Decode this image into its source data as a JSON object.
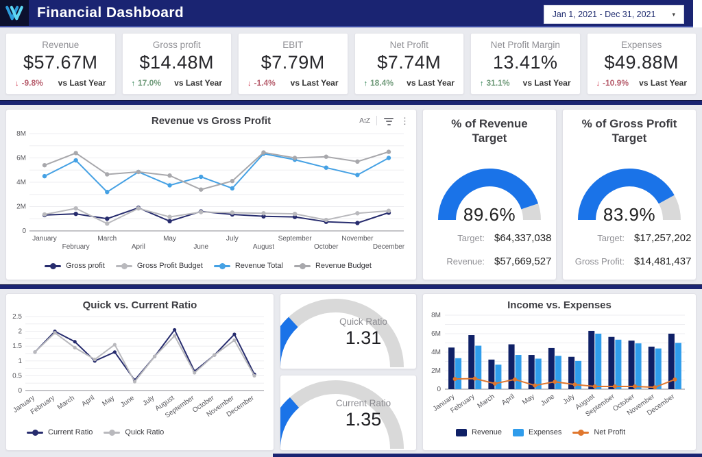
{
  "colors": {
    "header_bg": "#1a2472",
    "accent_blue": "#1a73e8",
    "gauge_track": "#d9d9d9",
    "bar_navy": "#0f2066",
    "bar_blue": "#2f9ceb",
    "orange": "#e0772e",
    "negative": "#cf2c44",
    "positive": "#1f7a48"
  },
  "header": {
    "title": "Financial Dashboard",
    "date_range": "Jan 1, 2021 - Dec 31, 2021",
    "caret": "▾"
  },
  "icons": {
    "sort_label": "A↕Z",
    "kebab": "⋮"
  },
  "kpis": [
    {
      "label": "Revenue",
      "value": "$57.67M",
      "arrow": "↓",
      "delta": "-9.8%",
      "direction": "down",
      "compare": "vs Last Year"
    },
    {
      "label": "Gross profit",
      "value": "$14.48M",
      "arrow": "↑",
      "delta": "17.0%",
      "direction": "up",
      "compare": "vs Last Year"
    },
    {
      "label": "EBIT",
      "value": "$7.79M",
      "arrow": "↓",
      "delta": "-1.4%",
      "direction": "down",
      "compare": "vs Last Year"
    },
    {
      "label": "Net Profit",
      "value": "$7.74M",
      "arrow": "↑",
      "delta": "18.4%",
      "direction": "up",
      "compare": "vs Last Year"
    },
    {
      "label": "Net Profit Margin",
      "value": "13.41%",
      "arrow": "↑",
      "delta": "31.1%",
      "direction": "up",
      "compare": "vs Last Year"
    },
    {
      "label": "Expenses",
      "value": "$49.88M",
      "arrow": "↓",
      "delta": "-10.9%",
      "direction": "down",
      "compare": "vs Last Year"
    }
  ],
  "chart_data": [
    {
      "type": "line",
      "title": "Revenue vs Gross Profit",
      "x": [
        "January",
        "February",
        "March",
        "April",
        "May",
        "June",
        "July",
        "August",
        "September",
        "October",
        "November",
        "December"
      ],
      "ylim": [
        0,
        8
      ],
      "ylabel_unit": "M",
      "yticks": [
        {
          "v": 0,
          "t": "0"
        },
        {
          "v": 2,
          "t": "2M"
        },
        {
          "v": 4,
          "t": "4M"
        },
        {
          "v": 6,
          "t": "6M"
        },
        {
          "v": 8,
          "t": "8M"
        }
      ],
      "legend_position": "bottom",
      "series": [
        {
          "name": "Gross profit",
          "color": "#272c6e",
          "values": [
            1.3,
            1.4,
            1.0,
            1.9,
            0.8,
            1.6,
            1.35,
            1.2,
            1.15,
            0.75,
            0.65,
            1.5
          ]
        },
        {
          "name": "Gross Profit Budget",
          "color": "#b9b9bd",
          "values": [
            1.35,
            1.85,
            0.6,
            1.85,
            1.15,
            1.55,
            1.5,
            1.45,
            1.4,
            0.9,
            1.45,
            1.65
          ]
        },
        {
          "name": "Revenue Total",
          "color": "#45a1e4",
          "values": [
            4.5,
            5.8,
            3.2,
            4.85,
            3.75,
            4.45,
            3.5,
            6.35,
            5.85,
            5.2,
            4.6,
            6.0
          ]
        },
        {
          "name": "Revenue Budget",
          "color": "#a8a8ac",
          "values": [
            5.4,
            6.4,
            4.65,
            4.85,
            4.55,
            3.4,
            4.1,
            6.45,
            6.0,
            6.1,
            5.7,
            6.5
          ]
        }
      ]
    },
    {
      "type": "gauge",
      "title": "% of Revenue Target",
      "value": 89.6,
      "max": 100,
      "value_label": "89.6%",
      "rows": [
        {
          "label": "Target:",
          "value": "$64,337,038"
        },
        {
          "label": "Revenue:",
          "value": "$57,669,527"
        }
      ]
    },
    {
      "type": "gauge",
      "title": "% of Gross Profit Target",
      "value": 83.9,
      "max": 100,
      "value_label": "83.9%",
      "rows": [
        {
          "label": "Target:",
          "value": "$17,257,202"
        },
        {
          "label": "Gross Profit:",
          "value": "$14,481,437"
        }
      ]
    },
    {
      "type": "line",
      "title": "Quick vs. Current Ratio",
      "x": [
        "January",
        "February",
        "March",
        "April",
        "May",
        "June",
        "July",
        "August",
        "September",
        "October",
        "November",
        "December"
      ],
      "ylim": [
        0,
        2.5
      ],
      "yticks": [
        {
          "v": 0,
          "t": "0"
        },
        {
          "v": 0.5,
          "t": "0.5"
        },
        {
          "v": 1,
          "t": "1"
        },
        {
          "v": 1.5,
          "t": "1.5"
        },
        {
          "v": 2,
          "t": "2"
        },
        {
          "v": 2.5,
          "t": "2.5"
        }
      ],
      "legend_position": "bottom",
      "series": [
        {
          "name": "Current Ratio",
          "color": "#272c6e",
          "values": [
            1.3,
            2.0,
            1.65,
            1.0,
            1.3,
            0.35,
            1.15,
            2.05,
            0.65,
            1.2,
            1.9,
            0.55
          ]
        },
        {
          "name": "Quick Ratio",
          "color": "#b9b9bd",
          "values": [
            1.3,
            1.95,
            1.45,
            1.05,
            1.55,
            0.3,
            1.15,
            1.85,
            0.6,
            1.2,
            1.7,
            0.5
          ]
        }
      ]
    },
    {
      "type": "gauge",
      "title": "Quick Ratio",
      "value": 1.31,
      "max": 5,
      "value_label": "1.31"
    },
    {
      "type": "gauge",
      "title": "Current Ratio",
      "value": 1.35,
      "max": 5,
      "value_label": "1.35"
    },
    {
      "type": "bar",
      "title": "Income vs. Expenses",
      "x": [
        "January",
        "February",
        "March",
        "April",
        "May",
        "June",
        "July",
        "August",
        "September",
        "October",
        "November",
        "December"
      ],
      "ylim": [
        0,
        8
      ],
      "yticks": [
        {
          "v": 0,
          "t": "0"
        },
        {
          "v": 2,
          "t": "2M"
        },
        {
          "v": 4,
          "t": "4M"
        },
        {
          "v": 6,
          "t": "6M"
        },
        {
          "v": 8,
          "t": "8M"
        }
      ],
      "legend_position": "bottom",
      "series": [
        {
          "name": "Revenue",
          "type": "bar",
          "color": "#0f2066",
          "values": [
            4.5,
            5.85,
            3.2,
            4.85,
            3.7,
            4.45,
            3.5,
            6.3,
            5.65,
            5.25,
            4.6,
            6.0
          ]
        },
        {
          "name": "Expenses",
          "type": "bar",
          "color": "#2f9ceb",
          "values": [
            3.35,
            4.7,
            2.65,
            3.7,
            3.3,
            3.6,
            3.05,
            6.0,
            5.35,
            4.95,
            4.4,
            5.0
          ]
        },
        {
          "name": "Net Profit",
          "type": "line",
          "color": "#e0772e",
          "values": [
            1.1,
            1.15,
            0.6,
            1.05,
            0.4,
            0.8,
            0.5,
            0.3,
            0.3,
            0.3,
            0.2,
            1.05
          ]
        }
      ]
    }
  ]
}
